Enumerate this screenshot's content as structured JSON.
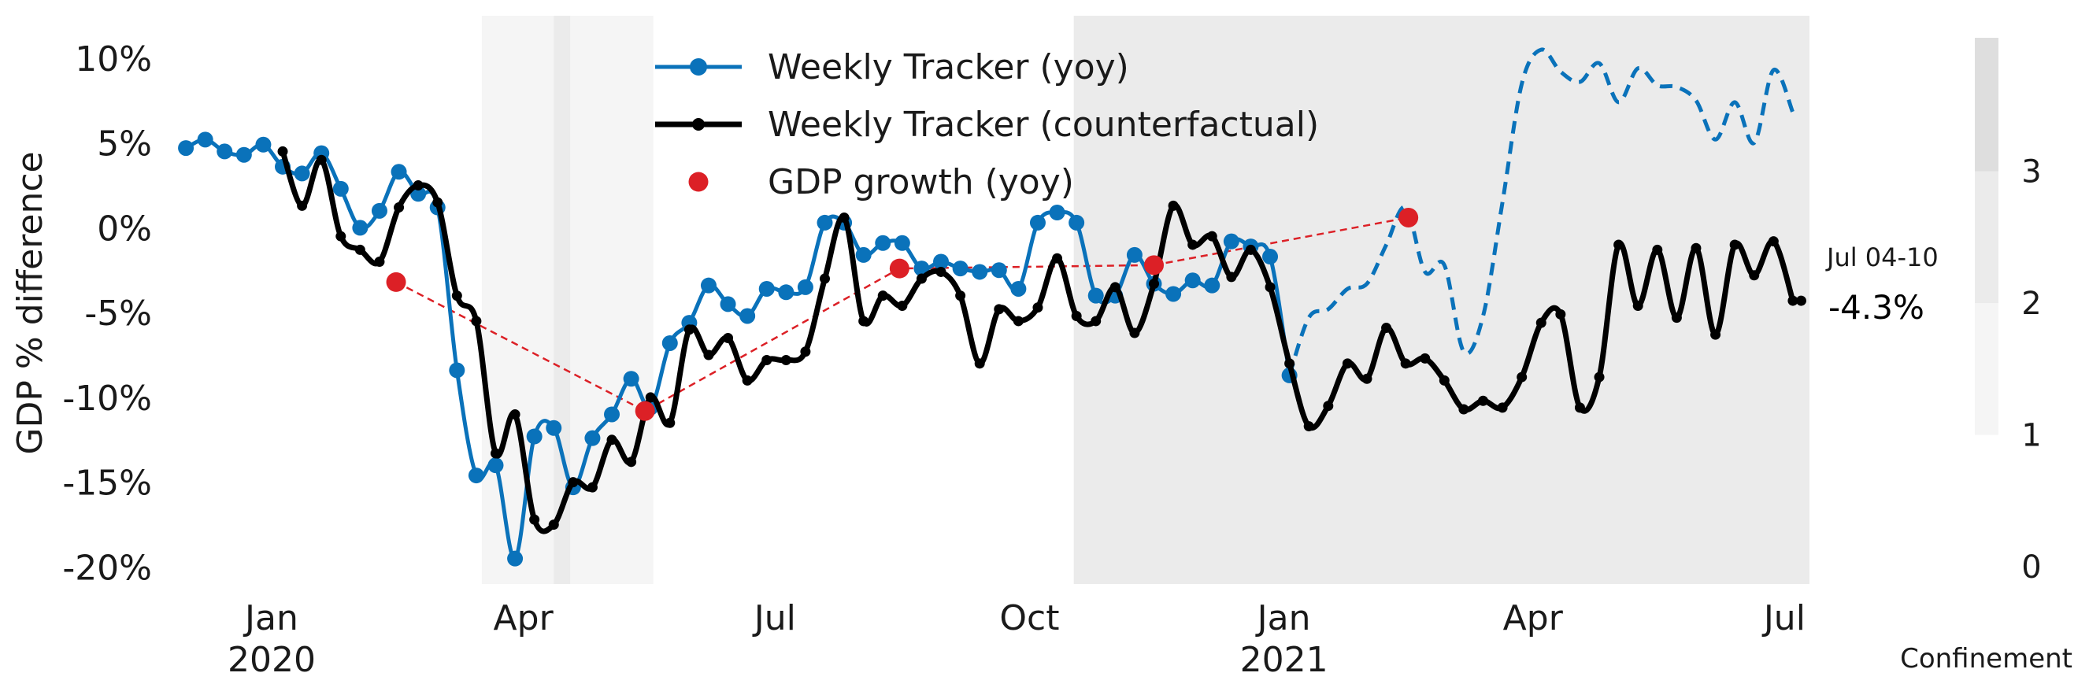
{
  "chart_data": {
    "type": "line",
    "title": "",
    "ylabel": "GDP % difference",
    "ylim": [
      -21,
      12.5
    ],
    "y_ticks": [
      10,
      5,
      0,
      -5,
      -10,
      -15,
      -20
    ],
    "y_tick_labels": [
      "10%",
      "5%",
      "0%",
      "-5%",
      "-10%",
      "-15%",
      "-20%"
    ],
    "x_range": [
      "2019-11-25",
      "2021-07-10"
    ],
    "x_ticks": [
      {
        "date": "2020-01-01",
        "label": "Jan",
        "sub": "2020"
      },
      {
        "date": "2020-04-01",
        "label": "Apr",
        "sub": ""
      },
      {
        "date": "2020-07-01",
        "label": "Jul",
        "sub": ""
      },
      {
        "date": "2020-10-01",
        "label": "Oct",
        "sub": ""
      },
      {
        "date": "2021-01-01",
        "label": "Jan",
        "sub": "2021"
      },
      {
        "date": "2021-04-01",
        "label": "Apr",
        "sub": ""
      },
      {
        "date": "2021-07-01",
        "label": "Jul",
        "sub": ""
      }
    ],
    "grid": false,
    "legend_position": "top-center",
    "legend": [
      {
        "label": "Weekly Tracker (yoy)",
        "color": "#0a72ba",
        "marker": "circle"
      },
      {
        "label": "Weekly Tracker (counterfactual)",
        "color": "#000000",
        "marker": "small-dot"
      },
      {
        "label": "GDP growth (yoy)",
        "color": "#dc2026",
        "marker": "circle"
      }
    ],
    "confinement": {
      "label": "Confinement",
      "levels": [
        0,
        1,
        2,
        3
      ],
      "level_colors": {
        "1": "#f5f5f5",
        "2": "#ebebeb",
        "3": "#dedede"
      },
      "periods": [
        {
          "start": "2020-03-17",
          "end": "2020-04-12",
          "level": 1
        },
        {
          "start": "2020-04-12",
          "end": "2020-04-18",
          "level": 2
        },
        {
          "start": "2020-04-18",
          "end": "2020-05-18",
          "level": 1
        },
        {
          "start": "2020-10-17",
          "end": "2021-07-10",
          "level": 2
        }
      ]
    },
    "end_annotation": {
      "period": "Jul 04-10",
      "value_label": "-4.3%",
      "date": "2021-07-07",
      "value": -4.3
    },
    "series": [
      {
        "name": "Weekly Tracker (yoy)",
        "color": "#0a72ba",
        "points": [
          [
            "2019-12-01",
            4.7
          ],
          [
            "2019-12-08",
            5.2
          ],
          [
            "2019-12-15",
            4.5
          ],
          [
            "2019-12-22",
            4.3
          ],
          [
            "2019-12-29",
            4.9
          ],
          [
            "2020-01-05",
            3.6
          ],
          [
            "2020-01-12",
            3.2
          ],
          [
            "2020-01-19",
            4.4
          ],
          [
            "2020-01-26",
            2.3
          ],
          [
            "2020-02-02",
            0.0
          ],
          [
            "2020-02-09",
            1.0
          ],
          [
            "2020-02-16",
            3.3
          ],
          [
            "2020-02-23",
            2.0
          ],
          [
            "2020-03-01",
            1.2
          ],
          [
            "2020-03-08",
            -8.4
          ],
          [
            "2020-03-15",
            -14.6
          ],
          [
            "2020-03-22",
            -14.0
          ],
          [
            "2020-03-29",
            -19.5
          ],
          [
            "2020-04-05",
            -12.3
          ],
          [
            "2020-04-12",
            -11.8
          ],
          [
            "2020-04-19",
            -15.3
          ],
          [
            "2020-04-26",
            -12.4
          ],
          [
            "2020-05-03",
            -11.0
          ],
          [
            "2020-05-10",
            -8.9
          ],
          [
            "2020-05-17",
            -10.6
          ],
          [
            "2020-05-24",
            -6.8
          ],
          [
            "2020-05-31",
            -5.6
          ],
          [
            "2020-06-07",
            -3.4
          ],
          [
            "2020-06-14",
            -4.5
          ],
          [
            "2020-06-21",
            -5.2
          ],
          [
            "2020-06-28",
            -3.6
          ],
          [
            "2020-07-05",
            -3.8
          ],
          [
            "2020-07-12",
            -3.5
          ],
          [
            "2020-07-19",
            0.3
          ],
          [
            "2020-07-26",
            0.3
          ],
          [
            "2020-08-02",
            -1.6
          ],
          [
            "2020-08-09",
            -0.9
          ],
          [
            "2020-08-16",
            -0.9
          ],
          [
            "2020-08-23",
            -2.4
          ],
          [
            "2020-08-30",
            -2.0
          ],
          [
            "2020-09-06",
            -2.4
          ],
          [
            "2020-09-13",
            -2.6
          ],
          [
            "2020-09-20",
            -2.5
          ],
          [
            "2020-09-27",
            -3.6
          ],
          [
            "2020-10-04",
            0.3
          ],
          [
            "2020-10-11",
            0.9
          ],
          [
            "2020-10-18",
            0.3
          ],
          [
            "2020-10-25",
            -4.0
          ],
          [
            "2020-11-01",
            -4.0
          ],
          [
            "2020-11-08",
            -1.6
          ],
          [
            "2020-11-15",
            -3.3
          ],
          [
            "2020-11-22",
            -3.9
          ],
          [
            "2020-11-29",
            -3.1
          ],
          [
            "2020-12-06",
            -3.4
          ],
          [
            "2020-12-13",
            -0.8
          ],
          [
            "2020-12-20",
            -1.1
          ],
          [
            "2020-12-27",
            -1.7
          ],
          [
            "2021-01-03",
            -8.7
          ]
        ],
        "dashed_points": [
          [
            "2021-01-03",
            -8.7
          ],
          [
            "2021-01-10",
            -5.3
          ],
          [
            "2021-01-17",
            -4.8
          ],
          [
            "2021-01-24",
            -3.6
          ],
          [
            "2021-01-31",
            -3.3
          ],
          [
            "2021-02-07",
            -1.0
          ],
          [
            "2021-02-14",
            1.2
          ],
          [
            "2021-02-21",
            -2.6
          ],
          [
            "2021-02-28",
            -2.2
          ],
          [
            "2021-03-07",
            -7.3
          ],
          [
            "2021-03-14",
            -5.2
          ],
          [
            "2021-03-21",
            1.5
          ],
          [
            "2021-03-28",
            8.5
          ],
          [
            "2021-04-04",
            10.5
          ],
          [
            "2021-04-11",
            9.2
          ],
          [
            "2021-04-18",
            8.6
          ],
          [
            "2021-04-25",
            9.7
          ],
          [
            "2021-05-02",
            7.4
          ],
          [
            "2021-05-09",
            9.4
          ],
          [
            "2021-05-16",
            8.4
          ],
          [
            "2021-05-23",
            8.3
          ],
          [
            "2021-05-30",
            7.5
          ],
          [
            "2021-06-06",
            5.2
          ],
          [
            "2021-06-13",
            7.4
          ],
          [
            "2021-06-20",
            5.0
          ],
          [
            "2021-06-27",
            9.3
          ],
          [
            "2021-07-04",
            6.8
          ]
        ]
      },
      {
        "name": "Weekly Tracker (counterfactual)",
        "color": "#000000",
        "points": [
          [
            "2020-01-05",
            4.5
          ],
          [
            "2020-01-12",
            1.3
          ],
          [
            "2020-01-19",
            4.0
          ],
          [
            "2020-01-26",
            -0.5
          ],
          [
            "2020-02-02",
            -1.3
          ],
          [
            "2020-02-09",
            -2.0
          ],
          [
            "2020-02-16",
            1.2
          ],
          [
            "2020-02-23",
            2.5
          ],
          [
            "2020-03-01",
            1.5
          ],
          [
            "2020-03-08",
            -4.0
          ],
          [
            "2020-03-15",
            -5.5
          ],
          [
            "2020-03-22",
            -13.3
          ],
          [
            "2020-03-29",
            -11.0
          ],
          [
            "2020-04-05",
            -17.2
          ],
          [
            "2020-04-12",
            -17.5
          ],
          [
            "2020-04-19",
            -15.0
          ],
          [
            "2020-04-26",
            -15.3
          ],
          [
            "2020-05-03",
            -12.5
          ],
          [
            "2020-05-10",
            -13.8
          ],
          [
            "2020-05-17",
            -10.0
          ],
          [
            "2020-05-24",
            -11.5
          ],
          [
            "2020-05-31",
            -6.0
          ],
          [
            "2020-06-07",
            -7.5
          ],
          [
            "2020-06-14",
            -6.5
          ],
          [
            "2020-06-21",
            -9.0
          ],
          [
            "2020-06-28",
            -7.8
          ],
          [
            "2020-07-05",
            -7.8
          ],
          [
            "2020-07-12",
            -7.3
          ],
          [
            "2020-07-19",
            -3.0
          ],
          [
            "2020-07-26",
            0.6
          ],
          [
            "2020-08-02",
            -5.5
          ],
          [
            "2020-08-09",
            -4.0
          ],
          [
            "2020-08-16",
            -4.6
          ],
          [
            "2020-08-23",
            -3.0
          ],
          [
            "2020-08-30",
            -2.6
          ],
          [
            "2020-09-06",
            -4.0
          ],
          [
            "2020-09-13",
            -8.0
          ],
          [
            "2020-09-20",
            -4.8
          ],
          [
            "2020-09-27",
            -5.5
          ],
          [
            "2020-10-04",
            -4.7
          ],
          [
            "2020-10-11",
            -1.8
          ],
          [
            "2020-10-18",
            -5.2
          ],
          [
            "2020-10-25",
            -5.5
          ],
          [
            "2020-11-01",
            -3.5
          ],
          [
            "2020-11-08",
            -6.2
          ],
          [
            "2020-11-15",
            -3.3
          ],
          [
            "2020-11-22",
            1.3
          ],
          [
            "2020-11-29",
            -1.0
          ],
          [
            "2020-12-06",
            -0.5
          ],
          [
            "2020-12-13",
            -2.9
          ],
          [
            "2020-12-20",
            -1.3
          ],
          [
            "2020-12-27",
            -3.5
          ],
          [
            "2021-01-03",
            -8.0
          ],
          [
            "2021-01-10",
            -11.7
          ],
          [
            "2021-01-17",
            -10.5
          ],
          [
            "2021-01-24",
            -8.0
          ],
          [
            "2021-01-31",
            -8.9
          ],
          [
            "2021-02-07",
            -5.9
          ],
          [
            "2021-02-14",
            -8.0
          ],
          [
            "2021-02-21",
            -7.7
          ],
          [
            "2021-02-28",
            -9.0
          ],
          [
            "2021-03-07",
            -10.7
          ],
          [
            "2021-03-14",
            -10.2
          ],
          [
            "2021-03-21",
            -10.6
          ],
          [
            "2021-03-28",
            -8.8
          ],
          [
            "2021-04-04",
            -5.6
          ],
          [
            "2021-04-11",
            -5.1
          ],
          [
            "2021-04-18",
            -10.6
          ],
          [
            "2021-04-25",
            -8.8
          ],
          [
            "2021-05-02",
            -1.0
          ],
          [
            "2021-05-09",
            -4.6
          ],
          [
            "2021-05-16",
            -1.3
          ],
          [
            "2021-05-23",
            -5.3
          ],
          [
            "2021-05-30",
            -1.2
          ],
          [
            "2021-06-06",
            -6.3
          ],
          [
            "2021-06-13",
            -1.0
          ],
          [
            "2021-06-20",
            -2.8
          ],
          [
            "2021-06-27",
            -0.8
          ],
          [
            "2021-07-04",
            -4.3
          ]
        ]
      },
      {
        "name": "GDP growth (yoy)",
        "color": "#dc2026",
        "points": [
          [
            "2020-02-15",
            -3.2
          ],
          [
            "2020-05-15",
            -10.8
          ],
          [
            "2020-08-15",
            -2.4
          ],
          [
            "2020-11-15",
            -2.2
          ],
          [
            "2021-02-15",
            0.6
          ]
        ]
      }
    ]
  }
}
